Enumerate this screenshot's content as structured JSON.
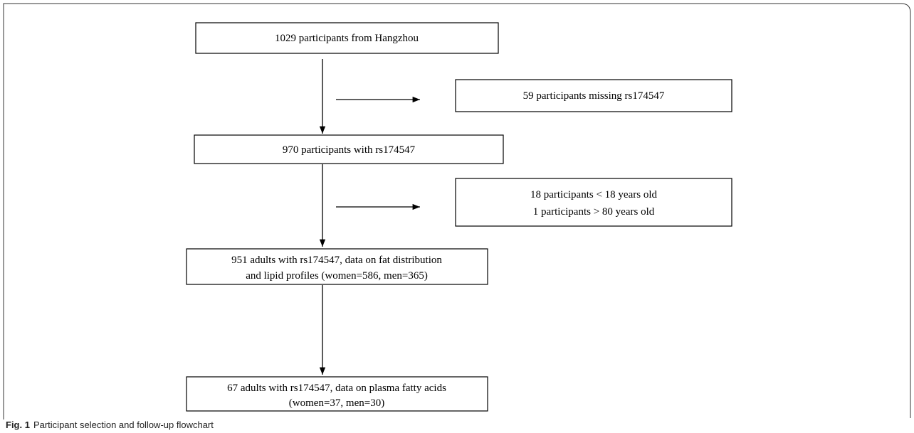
{
  "nodes": [
    {
      "lines": [
        "1029 participants from Hangzhou"
      ]
    },
    {
      "lines": [
        "59 participants missing rs174547"
      ]
    },
    {
      "lines": [
        "970 participants with rs174547"
      ]
    },
    {
      "lines": [
        "18 participants < 18 years old",
        "1 participants > 80 years old"
      ]
    },
    {
      "lines": [
        "951 adults with rs174547, data on fat distribution",
        "and lipid profiles (women=586, men=365)"
      ]
    },
    {
      "lines": [
        "67 adults with rs174547, data on plasma fatty acids",
        "(women=37, men=30)"
      ]
    }
  ],
  "caption": {
    "label": "Fig. 1",
    "text": "Participant selection and follow-up flowchart"
  }
}
